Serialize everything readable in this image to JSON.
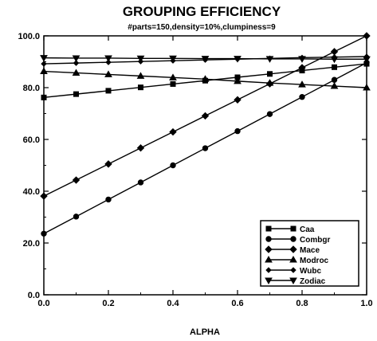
{
  "chart_data": {
    "type": "line",
    "title": "GROUPING EFFICIENCY",
    "subtitle": "#parts=150,density=10%,clumpiness=9",
    "xlabel": "ALPHA",
    "ylabel": "",
    "xlim": [
      0.0,
      1.0
    ],
    "ylim": [
      0.0,
      100.0
    ],
    "x_ticks": [
      "0.0",
      "0.2",
      "0.4",
      "0.6",
      "0.8",
      "1.0"
    ],
    "y_ticks": [
      "0.0",
      "20.0",
      "40.0",
      "60.0",
      "80.0",
      "100.0"
    ],
    "grid": false,
    "legend_position": "bottom-right",
    "x": [
      0.0,
      0.1,
      0.2,
      0.3,
      0.4,
      0.5,
      0.6,
      0.7,
      0.8,
      0.9,
      1.0
    ],
    "series": [
      {
        "name": "Caa",
        "marker": "square",
        "values": [
          76.2,
          77.5,
          78.8,
          80.1,
          81.4,
          82.7,
          84.0,
          85.3,
          86.6,
          87.9,
          89.2
        ]
      },
      {
        "name": "Combgr",
        "marker": "circle",
        "values": [
          23.6,
          30.2,
          36.8,
          43.4,
          50.0,
          56.6,
          63.2,
          69.8,
          76.4,
          83.0,
          89.6
        ]
      },
      {
        "name": "Mace",
        "marker": "diamond",
        "values": [
          38.1,
          44.3,
          50.5,
          56.7,
          62.9,
          69.1,
          75.3,
          81.5,
          87.7,
          93.9,
          100.0
        ]
      },
      {
        "name": "Modroc",
        "marker": "triangle-up",
        "values": [
          86.3,
          85.7,
          85.1,
          84.5,
          83.9,
          83.3,
          82.5,
          81.8,
          81.2,
          80.6,
          80.0
        ]
      },
      {
        "name": "Wubc",
        "marker": "diamond-small",
        "values": [
          89.2,
          89.5,
          89.8,
          90.1,
          90.4,
          90.7,
          91.0,
          91.3,
          91.6,
          91.8,
          92.0
        ]
      },
      {
        "name": "Zodiac",
        "marker": "triangle-down",
        "values": [
          91.5,
          91.4,
          91.4,
          91.3,
          91.3,
          91.2,
          91.2,
          91.1,
          91.1,
          91.0,
          91.0
        ]
      }
    ]
  }
}
